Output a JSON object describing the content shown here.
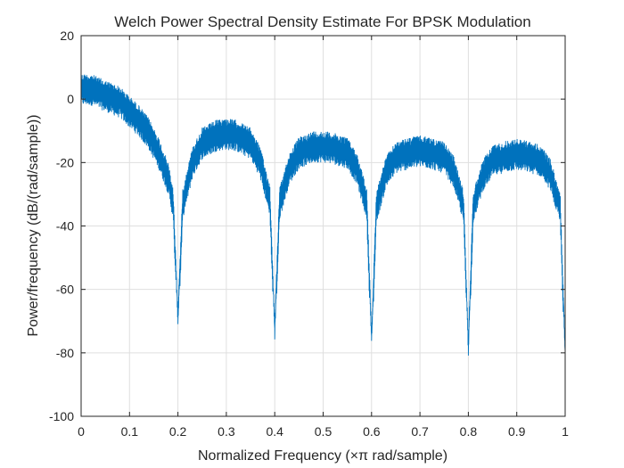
{
  "chart_data": {
    "type": "line",
    "title": "Welch Power Spectral Density Estimate For BPSK Modulation",
    "xlabel": "Normalized Frequency  (×π rad/sample)",
    "ylabel": "Power/frequency (dB/(rad/sample))",
    "xlim": [
      0,
      1
    ],
    "ylim": [
      -100,
      20
    ],
    "xticks": [
      0,
      0.1,
      0.2,
      0.3,
      0.4,
      0.5,
      0.6,
      0.7,
      0.8,
      0.9,
      1
    ],
    "xtick_labels": [
      "0",
      "0.1",
      "0.2",
      "0.3",
      "0.4",
      "0.5",
      "0.6",
      "0.7",
      "0.8",
      "0.9",
      "1"
    ],
    "yticks": [
      -100,
      -80,
      -60,
      -40,
      -20,
      0,
      20
    ],
    "ytick_labels": [
      "-100",
      "-80",
      "-60",
      "-40",
      "-20",
      "0",
      "20"
    ],
    "grid": true,
    "line_color": "#0072bd",
    "series": [
      {
        "values_description_points": [
          [
            0.0,
            6
          ],
          [
            0.02,
            6
          ],
          [
            0.05,
            4
          ],
          [
            0.08,
            2
          ],
          [
            0.1,
            -1
          ],
          [
            0.12,
            -4
          ],
          [
            0.14,
            -8
          ],
          [
            0.16,
            -14
          ],
          [
            0.18,
            -22
          ],
          [
            0.19,
            -30
          ],
          [
            0.2,
            -68
          ],
          [
            0.21,
            -30
          ],
          [
            0.23,
            -17
          ],
          [
            0.25,
            -11
          ],
          [
            0.28,
            -8.5
          ],
          [
            0.3,
            -8
          ],
          [
            0.32,
            -8.5
          ],
          [
            0.35,
            -11
          ],
          [
            0.37,
            -17
          ],
          [
            0.39,
            -29
          ],
          [
            0.4,
            -72
          ],
          [
            0.41,
            -30
          ],
          [
            0.43,
            -19
          ],
          [
            0.45,
            -14
          ],
          [
            0.48,
            -12
          ],
          [
            0.5,
            -12
          ],
          [
            0.52,
            -12.5
          ],
          [
            0.55,
            -14
          ],
          [
            0.57,
            -19
          ],
          [
            0.59,
            -30
          ],
          [
            0.6,
            -75
          ],
          [
            0.61,
            -31
          ],
          [
            0.63,
            -20
          ],
          [
            0.65,
            -15.5
          ],
          [
            0.68,
            -14
          ],
          [
            0.7,
            -13.5
          ],
          [
            0.72,
            -14
          ],
          [
            0.75,
            -15.5
          ],
          [
            0.77,
            -20
          ],
          [
            0.79,
            -31
          ],
          [
            0.8,
            -77
          ],
          [
            0.81,
            -31
          ],
          [
            0.83,
            -21
          ],
          [
            0.85,
            -16.5
          ],
          [
            0.88,
            -15
          ],
          [
            0.9,
            -14.5
          ],
          [
            0.92,
            -15
          ],
          [
            0.95,
            -16.5
          ],
          [
            0.97,
            -21
          ],
          [
            0.99,
            -32
          ],
          [
            1.0,
            -80
          ]
        ]
      }
    ]
  }
}
